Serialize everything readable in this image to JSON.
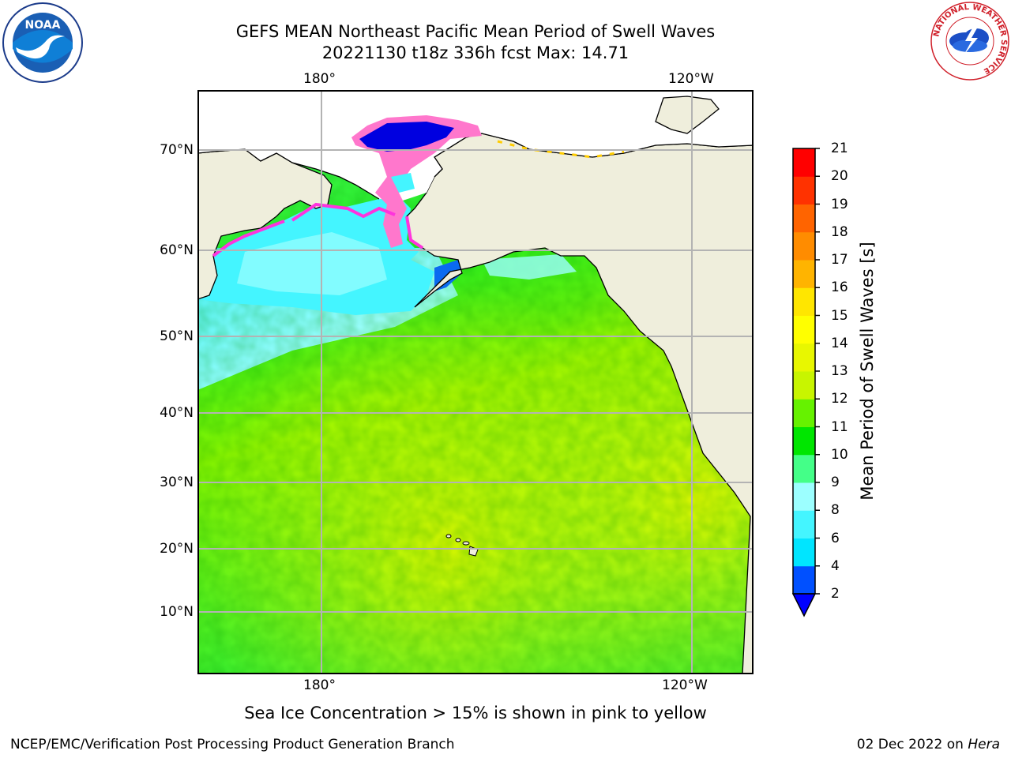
{
  "title": {
    "line1": "GEFS MEAN Northeast Pacific Mean Period of Swell Waves",
    "line2": "20221130 t18z 336h fcst   Max: 14.71"
  },
  "map": {
    "lon_labels_top": [
      "180°",
      "120°W"
    ],
    "lon_labels_bottom": [
      "180°",
      "120°W"
    ],
    "lat_labels": [
      "70°N",
      "60°N",
      "50°N",
      "40°N",
      "30°N",
      "20°N",
      "10°N"
    ]
  },
  "colorbar": {
    "label": "Mean Period of Swell Waves [s]",
    "ticks": [
      "21",
      "20",
      "19",
      "18",
      "17",
      "16",
      "15",
      "14",
      "13",
      "12",
      "11",
      "10",
      "9",
      "8",
      "6",
      "4",
      "2"
    ],
    "colors_bottom_to_top": [
      "#0050ff",
      "#00e5ff",
      "#44f5ff",
      "#9cffff",
      "#44ff88",
      "#00e600",
      "#66f200",
      "#c8f500",
      "#e8f700",
      "#ffff00",
      "#ffe600",
      "#ffb400",
      "#ff8c00",
      "#ff6400",
      "#ff3200",
      "#ff0000"
    ],
    "under_color": "#0000ff"
  },
  "caption": "Sea Ice Concentration > 15% is shown in pink to yellow",
  "footer": {
    "left": "NCEP/EMC/Verification Post Processing Product Generation Branch",
    "right_prefix": "02 Dec 2022 on ",
    "right_host": "Hera"
  },
  "logos": {
    "noaa_text": "NOAA",
    "nws_ring_text": "NATIONAL WEATHER SERVICE"
  }
}
